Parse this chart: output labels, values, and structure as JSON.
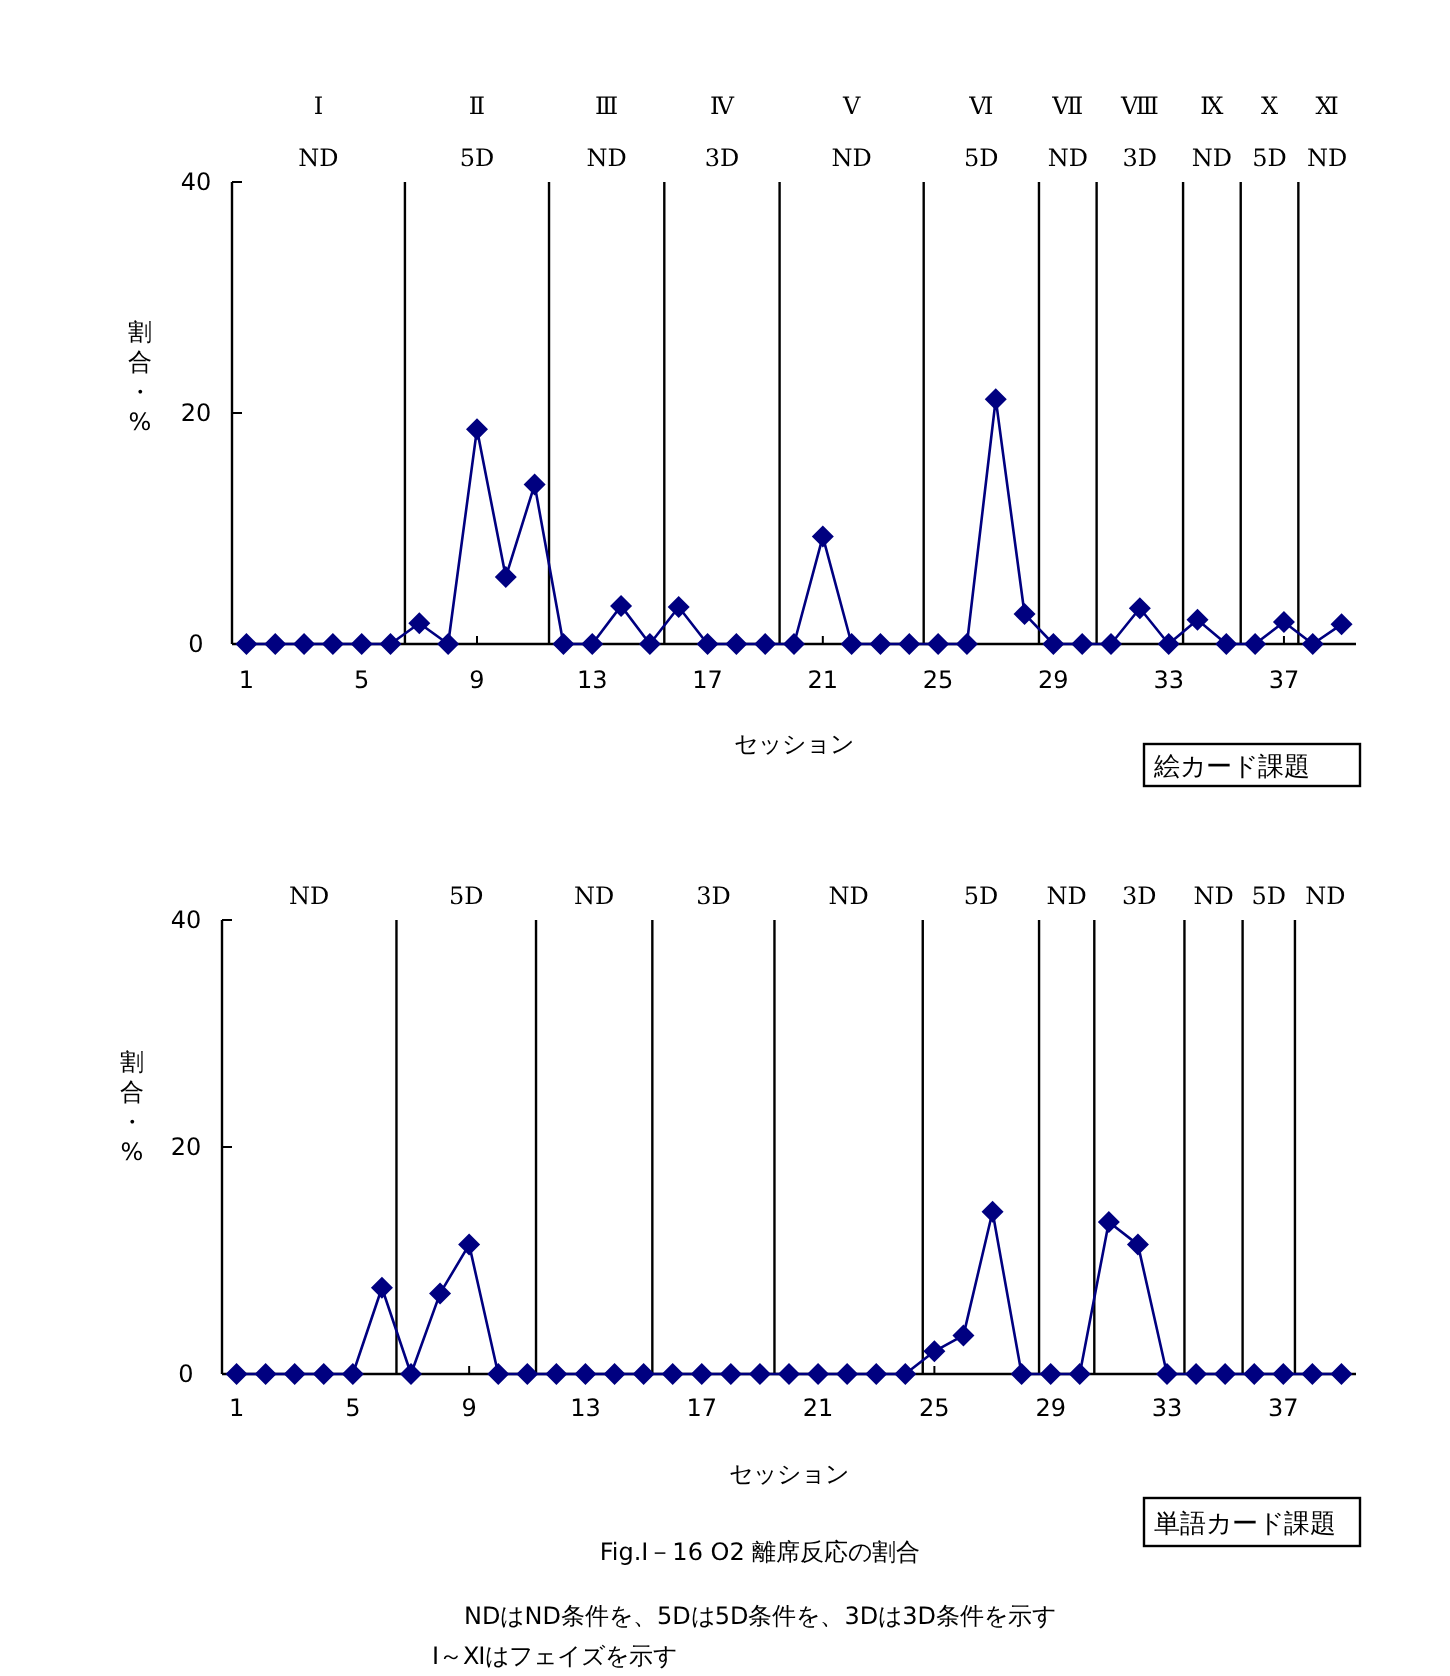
{
  "chart_data": [
    {
      "type": "line",
      "xlabel": "セッション",
      "ylabel": "割合・%",
      "marker": "diamond",
      "line_style": "solid",
      "grid": false,
      "x": [
        1,
        2,
        3,
        4,
        5,
        6,
        7,
        8,
        9,
        10,
        11,
        12,
        13,
        14,
        15,
        16,
        17,
        18,
        19,
        20,
        21,
        22,
        23,
        24,
        25,
        26,
        27,
        28,
        29,
        30,
        31,
        32,
        33,
        34,
        35,
        36,
        37,
        38,
        39
      ],
      "series": [
        {
          "color": "#000080",
          "values": [
            0,
            0,
            0,
            0,
            0,
            0,
            1.8,
            0,
            18.6,
            5.8,
            13.8,
            0,
            0,
            3.3,
            0,
            3.2,
            0,
            0,
            0,
            0,
            9.3,
            0,
            0,
            0,
            0,
            0,
            21.2,
            2.6,
            0,
            0,
            0,
            3.1,
            0,
            2.1,
            0,
            0,
            1.9,
            0,
            1.7
          ]
        }
      ],
      "xlim": [
        0.5,
        39.5
      ],
      "xticks": [
        1,
        5,
        9,
        13,
        17,
        21,
        25,
        29,
        33,
        37
      ],
      "ylim": [
        0,
        40
      ],
      "yticks": [
        0,
        20,
        40
      ],
      "ref_lines": [
        {
          "axis": "x",
          "value": 6.5
        },
        {
          "axis": "x",
          "value": 11.5
        },
        {
          "axis": "x",
          "value": 15.5
        },
        {
          "axis": "x",
          "value": 19.5
        },
        {
          "axis": "x",
          "value": 24.5
        },
        {
          "axis": "x",
          "value": 28.5
        },
        {
          "axis": "x",
          "value": 30.5
        },
        {
          "axis": "x",
          "value": 33.5
        },
        {
          "axis": "x",
          "value": 35.5
        },
        {
          "axis": "x",
          "value": 37.5
        }
      ],
      "annotations": [
        "Ⅰ",
        "Ⅱ",
        "Ⅲ",
        "Ⅳ",
        "Ⅴ",
        "Ⅵ",
        "Ⅶ",
        "Ⅷ",
        "Ⅸ",
        "Ⅹ",
        "Ⅺ",
        "ND",
        "5D",
        "ND",
        "3D",
        "ND",
        "5D",
        "ND",
        "3D",
        "ND",
        "5D",
        "ND",
        "絵カード課題"
      ]
    },
    {
      "type": "line",
      "xlabel": "セッション",
      "ylabel": "割合・%",
      "marker": "diamond",
      "line_style": "solid",
      "grid": false,
      "x": [
        1,
        2,
        3,
        4,
        5,
        6,
        7,
        8,
        9,
        10,
        11,
        12,
        13,
        14,
        15,
        16,
        17,
        18,
        19,
        20,
        21,
        22,
        23,
        24,
        25,
        26,
        27,
        28,
        29,
        30,
        31,
        32,
        33,
        34,
        35,
        36,
        37,
        38,
        39
      ],
      "series": [
        {
          "color": "#000080",
          "values": [
            0,
            0,
            0,
            0,
            0,
            7.6,
            0,
            7.1,
            11.4,
            0,
            0,
            0,
            0,
            0,
            0,
            0,
            0,
            0,
            0,
            0,
            0,
            0,
            0,
            0,
            2.0,
            3.4,
            14.3,
            0,
            0,
            0,
            13.4,
            11.4,
            0,
            0,
            0,
            0,
            0,
            0,
            0
          ]
        }
      ],
      "xlim": [
        0.5,
        39.5
      ],
      "xticks": [
        1,
        5,
        9,
        13,
        17,
        21,
        25,
        29,
        33,
        37
      ],
      "ylim": [
        0,
        40
      ],
      "yticks": [
        0,
        20,
        40
      ],
      "ref_lines": [
        {
          "axis": "x",
          "value": 6.5
        },
        {
          "axis": "x",
          "value": 11.3
        },
        {
          "axis": "x",
          "value": 15.3
        },
        {
          "axis": "x",
          "value": 19.5
        },
        {
          "axis": "x",
          "value": 24.6
        },
        {
          "axis": "x",
          "value": 28.6
        },
        {
          "axis": "x",
          "value": 30.5
        },
        {
          "axis": "x",
          "value": 33.6
        },
        {
          "axis": "x",
          "value": 35.6
        },
        {
          "axis": "x",
          "value": 37.4
        }
      ],
      "annotations": [
        "ND",
        "5D",
        "ND",
        "3D",
        "ND",
        "5D",
        "ND",
        "3D",
        "ND",
        "5D",
        "ND",
        "単語カード課題",
        "Fig.Ⅰ－16 O2 離席反応の割合",
        "NDはND条件を、5Dは5D条件を、3Dは3D条件を示す",
        "Ⅰ～Ⅺはフェイズを示す"
      ]
    }
  ]
}
